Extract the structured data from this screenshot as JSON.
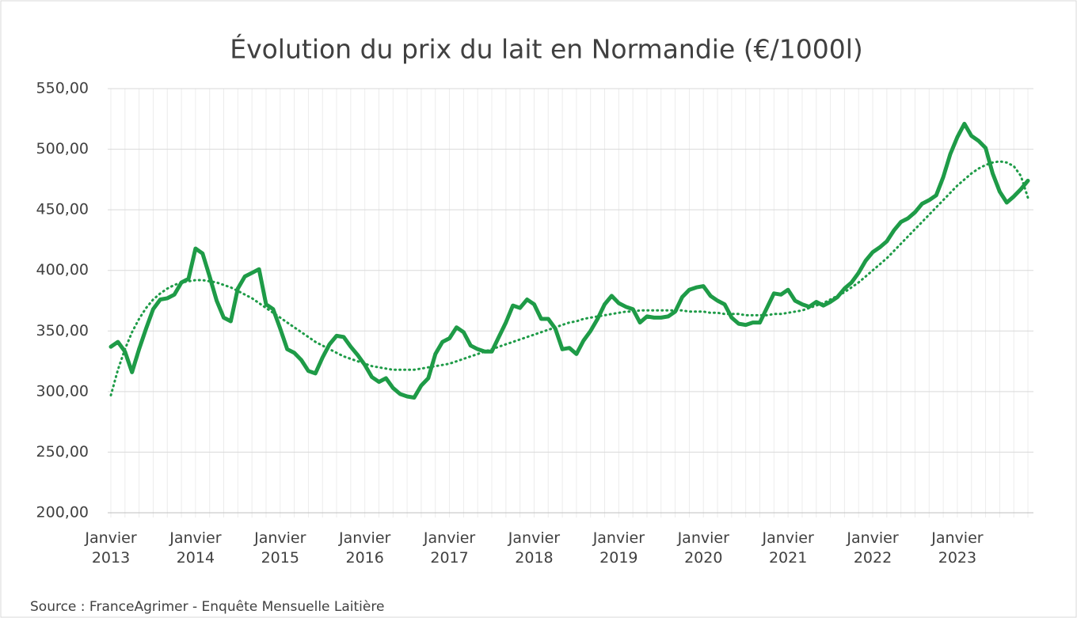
{
  "chart_data": {
    "type": "line",
    "title": "Évolution du prix du lait en Normandie (€/1000l)",
    "source": "Source : FranceAgrimer - Enquête Mensuelle Laitière",
    "categories": [
      "Janvier 2013",
      null,
      null,
      null,
      null,
      null,
      null,
      null,
      null,
      null,
      null,
      null,
      "Janvier 2014",
      null,
      null,
      null,
      null,
      null,
      null,
      null,
      null,
      null,
      null,
      null,
      "Janvier 2015",
      null,
      null,
      null,
      null,
      null,
      null,
      null,
      null,
      null,
      null,
      null,
      "Janvier 2016",
      null,
      null,
      null,
      null,
      null,
      null,
      null,
      null,
      null,
      null,
      null,
      "Janvier 2017",
      null,
      null,
      null,
      null,
      null,
      null,
      null,
      null,
      null,
      null,
      null,
      "Janvier 2018",
      null,
      null,
      null,
      null,
      null,
      null,
      null,
      null,
      null,
      null,
      null,
      "Janvier 2019",
      null,
      null,
      null,
      null,
      null,
      null,
      null,
      null,
      null,
      null,
      null,
      "Janvier 2020",
      null,
      null,
      null,
      null,
      null,
      null,
      null,
      null,
      null,
      null,
      null,
      "Janvier 2021",
      null,
      null,
      null,
      null,
      null,
      null,
      null,
      null,
      null,
      null,
      null,
      "Janvier 2022",
      null,
      null,
      null,
      null,
      null,
      null,
      null,
      null,
      null,
      null,
      null,
      "Janvier 2023",
      null,
      null,
      null,
      null,
      null,
      null,
      null,
      null,
      null,
      null
    ],
    "series": [
      {
        "color": "#1e9b47",
        "style": "solid",
        "values": [
          337,
          341,
          333,
          316,
          335,
          352,
          368,
          376,
          377,
          380,
          390,
          393,
          418,
          414,
          395,
          375,
          361,
          358,
          385,
          395,
          398,
          401,
          372,
          368,
          352,
          335,
          332,
          326,
          317,
          315,
          328,
          339,
          346,
          345,
          337,
          330,
          322,
          312,
          308,
          311,
          303,
          298,
          296,
          295,
          305,
          311,
          331,
          341,
          344,
          353,
          349,
          338,
          335,
          333,
          333,
          345,
          357,
          371,
          369,
          376,
          372,
          360,
          360,
          352,
          335,
          336,
          331,
          342,
          350,
          360,
          372,
          379,
          373,
          370,
          368,
          357,
          362,
          361,
          361,
          362,
          366,
          378,
          384,
          386,
          387,
          379,
          375,
          372,
          361,
          356,
          355,
          357,
          357,
          369,
          381,
          380,
          384,
          375,
          372,
          370,
          374,
          371,
          374,
          378,
          385,
          390,
          398,
          408,
          415,
          419,
          424,
          433,
          440,
          443,
          448,
          455,
          458,
          462,
          477,
          496,
          510,
          521,
          511,
          507,
          501,
          480,
          465,
          456,
          461,
          467,
          474
        ]
      },
      {
        "color": "#1e9b47",
        "style": "dotted",
        "values": [
          297,
          318,
          335,
          349,
          360,
          369,
          376,
          381,
          385,
          388,
          390,
          391,
          392,
          392,
          391,
          390,
          388,
          386,
          383,
          380,
          377,
          373,
          369,
          365,
          361,
          357,
          353,
          349,
          345,
          341,
          338,
          335,
          332,
          329,
          327,
          325,
          323,
          321,
          320,
          319,
          318,
          318,
          318,
          318,
          319,
          320,
          321,
          322,
          323,
          325,
          327,
          329,
          331,
          333,
          335,
          337,
          339,
          341,
          343,
          345,
          347,
          349,
          351,
          353,
          355,
          357,
          358,
          360,
          361,
          362,
          363,
          364,
          365,
          366,
          366,
          367,
          367,
          367,
          367,
          367,
          367,
          367,
          366,
          366,
          366,
          365,
          365,
          364,
          364,
          364,
          363,
          363,
          363,
          363,
          364,
          364,
          365,
          366,
          367,
          369,
          371,
          373,
          376,
          379,
          382,
          386,
          390,
          395,
          400,
          405,
          410,
          416,
          422,
          428,
          434,
          440,
          446,
          452,
          458,
          464,
          470,
          475,
          480,
          484,
          487,
          489,
          490,
          489,
          486,
          478,
          460
        ]
      }
    ],
    "ylim": [
      200,
      550
    ],
    "yticks": [
      {
        "value": 200,
        "label": "200,00"
      },
      {
        "value": 250,
        "label": "250,00"
      },
      {
        "value": 300,
        "label": "300,00"
      },
      {
        "value": 350,
        "label": "350,00"
      },
      {
        "value": 400,
        "label": "400,00"
      },
      {
        "value": 450,
        "label": "450,00"
      },
      {
        "value": 500,
        "label": "500,00"
      },
      {
        "value": 550,
        "label": "550,00"
      }
    ],
    "grid": true
  }
}
